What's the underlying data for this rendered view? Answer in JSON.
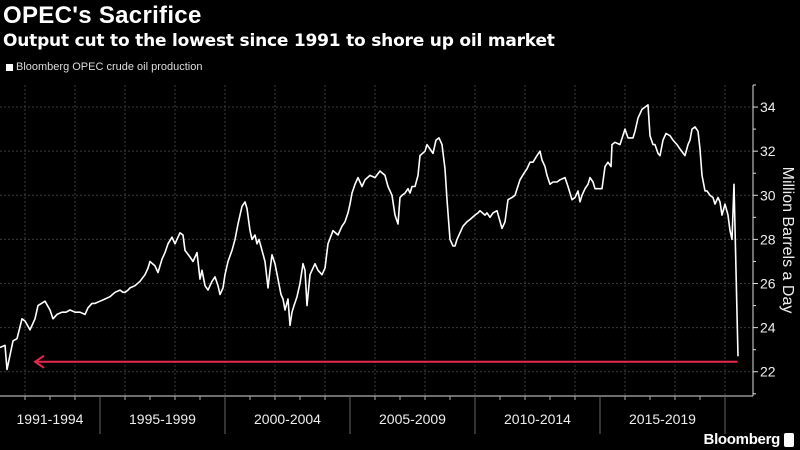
{
  "chart_data": {
    "type": "line",
    "title": "OPEC's Sacrifice",
    "subtitle": "Output cut to the lowest since 1991 to shore up oil market",
    "ylabel": "Million Barrels a Day",
    "xlabel": "",
    "ylim": [
      20.9,
      35.0
    ],
    "xlim": [
      1991.0,
      2021.12
    ],
    "yticks": [
      22,
      24,
      26,
      28,
      30,
      32,
      34
    ],
    "ytick_labels": [
      "22",
      "24",
      "26",
      "28",
      "30",
      "32",
      "34"
    ],
    "x_period_labels": [
      {
        "label": "1991-1994",
        "start": 1991,
        "end": 1995
      },
      {
        "label": "1995-1999",
        "start": 1995,
        "end": 2000
      },
      {
        "label": "2000-2004",
        "start": 2000,
        "end": 2005
      },
      {
        "label": "2005-2009",
        "start": 2005,
        "end": 2010
      },
      {
        "label": "2010-2014",
        "start": 2010,
        "end": 2015
      },
      {
        "label": "2015-2019",
        "start": 2015,
        "end": 2020
      }
    ],
    "grid": true,
    "legend_position": "top-left",
    "series": [
      {
        "name": "Bloomberg OPEC crude oil production",
        "color": "#ffffff",
        "x": [
          1991.0,
          1991.2,
          1991.28,
          1991.52,
          1991.68,
          1991.88,
          1992.0,
          1992.2,
          1992.4,
          1992.52,
          1992.8,
          1993.0,
          1993.12,
          1993.28,
          1993.48,
          1993.64,
          1993.8,
          1994.0,
          1994.2,
          1994.4,
          1994.52,
          1994.68,
          1994.8,
          1995.0,
          1995.2,
          1995.4,
          1995.6,
          1995.8,
          1995.92,
          1996.0,
          1996.12,
          1996.2,
          1996.4,
          1996.6,
          1996.8,
          1996.92,
          1997.0,
          1997.2,
          1997.32,
          1997.48,
          1997.6,
          1997.72,
          1997.88,
          1998.0,
          1998.12,
          1998.2,
          1998.32,
          1998.4,
          1998.6,
          1998.72,
          1998.88,
          1999.0,
          1999.08,
          1999.2,
          1999.32,
          1999.48,
          1999.6,
          1999.72,
          1999.8,
          1999.92,
          2000.0,
          2000.12,
          2000.28,
          2000.4,
          2000.52,
          2000.68,
          2000.8,
          2000.88,
          2001.0,
          2001.08,
          2001.2,
          2001.28,
          2001.36,
          2001.48,
          2001.6,
          2001.72,
          2001.8,
          2001.88,
          2002.0,
          2002.12,
          2002.24,
          2002.32,
          2002.4,
          2002.52,
          2002.6,
          2002.68,
          2002.76,
          2002.88,
          2003.0,
          2003.12,
          2003.2,
          2003.28,
          2003.4,
          2003.6,
          2003.72,
          2003.88,
          2004.0,
          2004.12,
          2004.32,
          2004.52,
          2004.68,
          2004.8,
          2004.92,
          2005.0,
          2005.08,
          2005.2,
          2005.32,
          2005.48,
          2005.6,
          2005.8,
          2006.0,
          2006.2,
          2006.4,
          2006.52,
          2006.68,
          2006.8,
          2006.92,
          2007.0,
          2007.08,
          2007.2,
          2007.32,
          2007.4,
          2007.48,
          2007.6,
          2007.72,
          2007.8,
          2008.0,
          2008.08,
          2008.2,
          2008.32,
          2008.44,
          2008.56,
          2008.68,
          2008.8,
          2008.88,
          2009.0,
          2009.12,
          2009.2,
          2009.28,
          2009.4,
          2009.52,
          2009.68,
          2009.8,
          2010.0,
          2010.12,
          2010.2,
          2010.4,
          2010.48,
          2010.6,
          2010.72,
          2010.88,
          2011.08,
          2011.2,
          2011.32,
          2011.48,
          2011.6,
          2011.8,
          2011.96,
          2012.08,
          2012.2,
          2012.32,
          2012.48,
          2012.6,
          2012.68,
          2012.8,
          2012.88,
          2013.0,
          2013.12,
          2013.28,
          2013.4,
          2013.6,
          2013.72,
          2013.88,
          2014.0,
          2014.12,
          2014.2,
          2014.28,
          2014.4,
          2014.52,
          2014.6,
          2014.72,
          2014.8,
          2014.92,
          2015.08,
          2015.2,
          2015.32,
          2015.44,
          2015.48,
          2015.6,
          2015.8,
          2016.0,
          2016.12,
          2016.2,
          2016.32,
          2016.4,
          2016.52,
          2016.68,
          2016.8,
          2016.92,
          2017.0,
          2017.12,
          2017.2,
          2017.32,
          2017.4,
          2017.52,
          2017.64,
          2017.8,
          2017.92,
          2018.08,
          2018.2,
          2018.4,
          2018.52,
          2018.6,
          2018.68,
          2018.8,
          2018.92,
          2019.0,
          2019.08,
          2019.2,
          2019.28,
          2019.4,
          2019.52,
          2019.6,
          2019.72,
          2019.8,
          2019.88,
          2020.0,
          2020.12,
          2020.2,
          2020.28,
          2020.36,
          2020.52
        ],
        "y": [
          23.1,
          23.2,
          22.1,
          23.4,
          23.5,
          24.4,
          24.3,
          23.9,
          24.4,
          25.0,
          25.2,
          24.8,
          24.4,
          24.6,
          24.7,
          24.7,
          24.8,
          24.7,
          24.7,
          24.6,
          24.9,
          25.1,
          25.1,
          25.2,
          25.3,
          25.4,
          25.6,
          25.7,
          25.6,
          25.6,
          25.7,
          25.8,
          25.9,
          26.1,
          26.4,
          26.7,
          27.0,
          26.8,
          26.5,
          27.1,
          27.4,
          27.8,
          28.1,
          27.8,
          28.1,
          28.3,
          28.2,
          27.5,
          27.2,
          27.0,
          27.4,
          26.2,
          26.6,
          25.9,
          25.7,
          26.1,
          26.3,
          25.9,
          25.5,
          25.8,
          26.4,
          27.0,
          27.5,
          28.0,
          28.7,
          29.5,
          29.7,
          29.4,
          28.4,
          28.0,
          28.2,
          27.8,
          28.0,
          27.5,
          27.0,
          25.8,
          26.6,
          27.3,
          26.9,
          26.2,
          25.5,
          25.3,
          24.8,
          25.3,
          24.1,
          24.7,
          25.0,
          25.4,
          26.0,
          26.9,
          26.6,
          25.0,
          26.4,
          26.9,
          26.6,
          26.4,
          26.7,
          27.8,
          28.4,
          28.2,
          28.6,
          28.8,
          29.2,
          29.6,
          30.1,
          30.5,
          30.8,
          30.4,
          30.7,
          30.9,
          30.8,
          31.1,
          30.9,
          30.4,
          30.0,
          29.1,
          28.7,
          29.9,
          30.0,
          30.1,
          30.3,
          30.1,
          30.4,
          30.4,
          30.9,
          31.8,
          32.0,
          32.3,
          32.1,
          31.9,
          32.5,
          32.6,
          32.3,
          31.2,
          29.8,
          28.0,
          27.7,
          27.7,
          28.0,
          28.3,
          28.6,
          28.8,
          28.9,
          29.1,
          29.2,
          29.3,
          29.1,
          29.2,
          29.0,
          29.2,
          29.3,
          28.5,
          28.8,
          29.8,
          29.9,
          30.0,
          30.7,
          31.0,
          31.2,
          31.5,
          31.5,
          31.8,
          32.0,
          31.6,
          31.3,
          30.9,
          30.5,
          30.6,
          30.6,
          30.7,
          30.8,
          30.4,
          29.8,
          29.9,
          30.2,
          29.7,
          30.0,
          30.3,
          30.5,
          30.8,
          30.6,
          30.3,
          30.3,
          30.3,
          31.3,
          31.5,
          31.3,
          32.3,
          32.4,
          32.3,
          33.0,
          32.6,
          32.6,
          32.6,
          32.9,
          33.5,
          33.9,
          34.0,
          34.1,
          32.7,
          32.3,
          32.3,
          31.9,
          31.8,
          32.5,
          32.8,
          32.7,
          32.5,
          32.3,
          32.1,
          31.8,
          32.3,
          32.5,
          33.0,
          33.1,
          32.9,
          32.1,
          30.9,
          30.2,
          30.2,
          30.0,
          29.9,
          29.6,
          29.9,
          29.7,
          29.1,
          29.6,
          29.1,
          28.4,
          28.0,
          30.5,
          22.7
        ]
      }
    ],
    "annotations": [
      {
        "type": "arrow",
        "direction": "left",
        "y": 22.45,
        "x_from": 2020.5,
        "x_to": 1992.4,
        "color": "#e8274f"
      }
    ],
    "colors": {
      "background": "#000000",
      "line": "#ffffff",
      "grid": "#3a3a3a",
      "annotation": "#e8274f"
    }
  },
  "brand": "Bloomberg"
}
